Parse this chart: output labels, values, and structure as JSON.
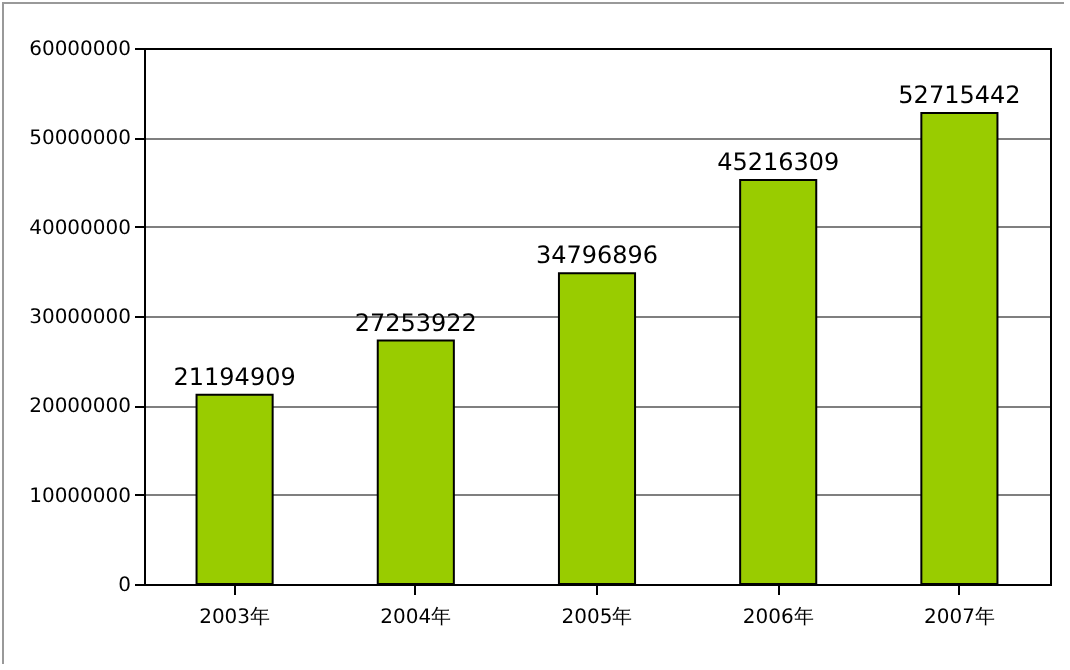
{
  "chart_data": {
    "type": "bar",
    "categories": [
      "2003年",
      "2004年",
      "2005年",
      "2006年",
      "2007年"
    ],
    "values": [
      21194909,
      27253922,
      34796896,
      45216309,
      52715442
    ],
    "color": "#99cc00",
    "ylim": [
      0,
      60000000
    ],
    "yticks": [
      0,
      10000000,
      20000000,
      30000000,
      40000000,
      50000000,
      60000000
    ],
    "grid": "y",
    "data_labels": true
  }
}
